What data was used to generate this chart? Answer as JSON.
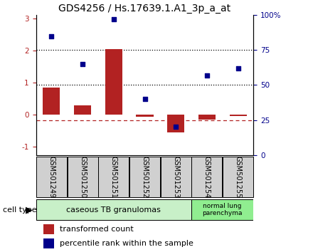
{
  "title": "GDS4256 / Hs.17639.1.A1_3p_a_at",
  "samples": [
    "GSM501249",
    "GSM501250",
    "GSM501251",
    "GSM501252",
    "GSM501253",
    "GSM501254",
    "GSM501255"
  ],
  "red_bars": [
    0.85,
    0.3,
    2.05,
    -0.05,
    -0.55,
    -0.15,
    -0.03
  ],
  "blue_dots_pct": [
    85,
    65,
    97,
    40,
    20,
    57,
    62
  ],
  "ylim_left": [
    -1.25,
    3.1
  ],
  "left_yticks": [
    -1,
    0,
    1,
    2,
    3
  ],
  "right_yticks": [
    0,
    25,
    50,
    75,
    100
  ],
  "right_yticklabels": [
    "0",
    "25",
    "50",
    "75",
    "100%"
  ],
  "dotted_lines_pct": [
    50,
    75
  ],
  "dashed_line_pct": 25,
  "bar_color": "#B22222",
  "dot_color": "#00008B",
  "group1_samples": [
    0,
    1,
    2,
    3,
    4
  ],
  "group2_samples": [
    5,
    6
  ],
  "group1_label": "caseous TB granulomas",
  "group2_label": "normal lung\nparenchyma",
  "group1_color": "#c8f0c8",
  "group2_color": "#90ee90",
  "cell_type_label": "cell type",
  "legend1": "transformed count",
  "legend2": "percentile rank within the sample",
  "title_fontsize": 10,
  "tick_fontsize": 7.5,
  "label_fontsize": 7,
  "legend_fontsize": 8
}
